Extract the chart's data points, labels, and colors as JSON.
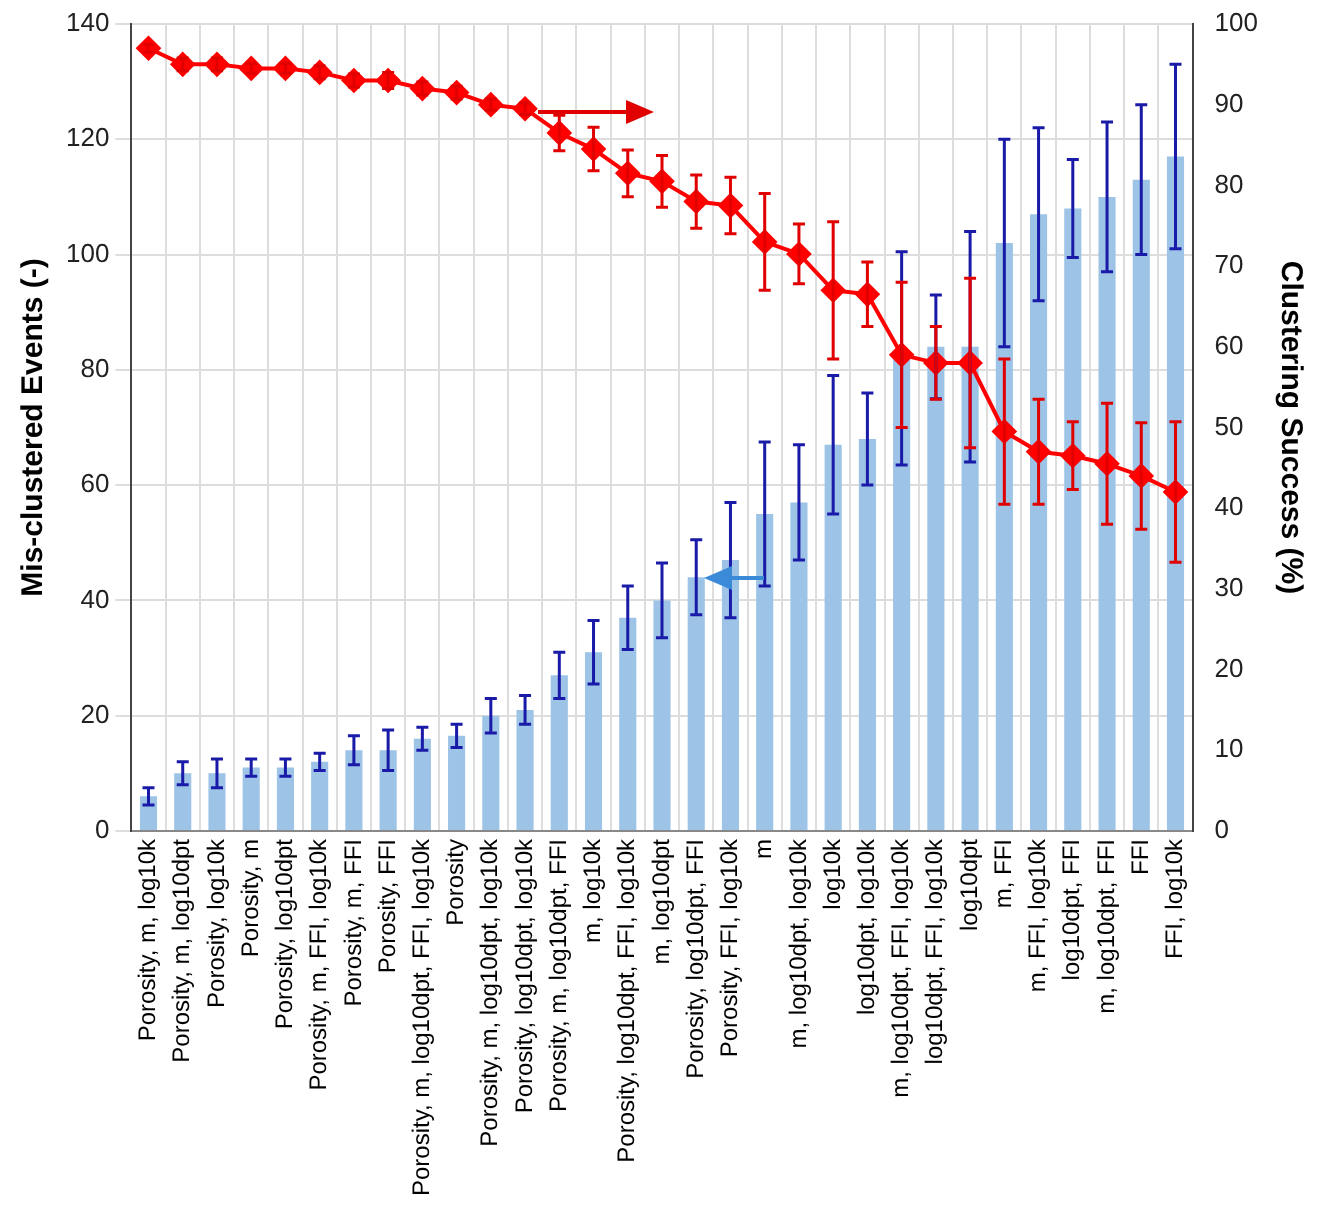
{
  "chart_data": {
    "type": "bar",
    "ylabel": "Mis-clustered Events (-)",
    "y2label": "Clustering Success (%)",
    "categories": [
      "Porosity, m, log10k",
      "Porosity, m, log10dpt",
      "Porosity, log10k",
      "Porosity, m",
      "Porosity, log10dpt",
      "Porosity, m, FFI, log10k",
      "Porosity, m, FFI",
      "Porosity, FFI",
      "Porosity, m, log10dpt, FFI, log10k",
      "Porosity",
      "Porosity, m, log10dpt, log10k",
      "Porosity, log10dpt, log10k",
      "Porosity, m, log10dpt, FFI",
      "m, log10k",
      "Porosity, log10dpt, FFI, log10k",
      "m, log10dpt",
      "Porosity, log10dpt, FFI",
      "Porosity, FFI, log10k",
      "m",
      "m, log10dpt, log10k",
      "log10k",
      "log10dpt, log10k",
      "m, log10dpt, FFI, log10k",
      "log10dpt, FFI, log10k",
      "log10dpt",
      "m, FFI",
      "m, FFI, log10k",
      "log10dpt, FFI",
      "m, log10dpt, FFI",
      "FFI",
      "FFI, log10k"
    ],
    "series": [
      {
        "color": "#9dc3e6",
        "values": [
          6,
          10,
          10,
          11,
          11,
          12,
          14,
          14,
          16,
          16.5,
          20,
          21,
          27,
          31,
          37,
          40,
          44,
          47,
          55,
          57,
          67,
          68,
          82,
          84,
          84,
          102,
          107,
          108,
          110,
          113,
          117
        ],
        "errors": [
          1.5,
          2,
          2.5,
          1.5,
          1.5,
          1.5,
          2.5,
          3.5,
          2,
          2,
          3,
          2.5,
          4,
          5.5,
          5.5,
          6.5,
          6.5,
          10,
          12.5,
          10,
          12,
          8,
          18.5,
          9,
          20,
          18,
          15,
          8.5,
          13,
          13,
          16
        ]
      },
      {
        "type": "line",
        "axis": "y2",
        "color": "#ff0000",
        "marker": "diamond",
        "values": [
          97,
          95,
          95,
          94.5,
          94.5,
          94,
          93,
          93,
          92,
          91.5,
          90,
          89.5,
          86.5,
          84.5,
          81.5,
          80.5,
          78,
          77.5,
          73,
          71.5,
          67,
          66.5,
          59,
          58,
          58,
          49.5,
          47,
          46.5,
          45.5,
          44,
          42
        ],
        "errors": [
          0.5,
          0.8,
          0.8,
          0.6,
          0.6,
          0.8,
          0.8,
          1,
          0.8,
          0.8,
          0.7,
          0.7,
          2.2,
          2.7,
          2.9,
          3.2,
          3.3,
          3.5,
          6,
          3.7,
          8.5,
          4,
          9,
          4.5,
          10.5,
          9,
          6.5,
          4.2,
          7.5,
          6.6,
          8.7
        ]
      }
    ],
    "ylim": [
      0,
      140
    ],
    "yticks": [
      0,
      20,
      40,
      60,
      80,
      100,
      120,
      140
    ],
    "y2lim": [
      0,
      100
    ],
    "y2ticks": [
      0,
      10,
      20,
      30,
      40,
      50,
      60,
      70,
      80,
      90,
      100
    ],
    "grid": true,
    "legend": false
  }
}
